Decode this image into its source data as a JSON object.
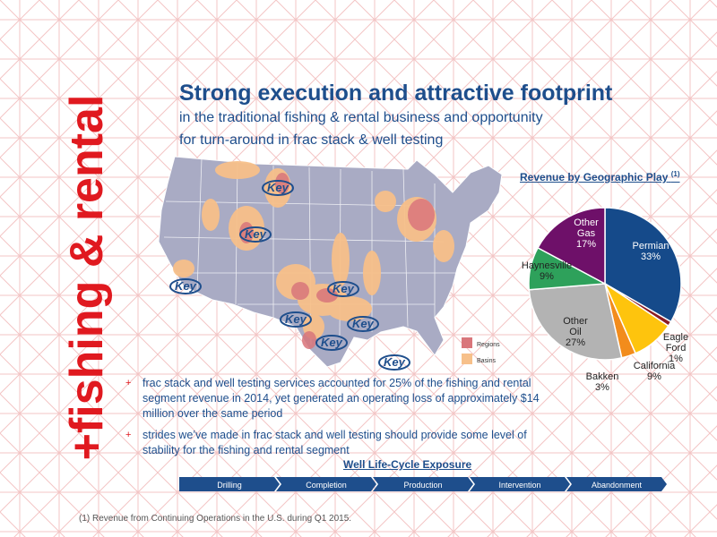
{
  "side_title": "+fishing & rental",
  "title": "Strong execution and attractive footprint",
  "subtitle_line1": "in the traditional fishing & rental business and opportunity",
  "subtitle_line2": "for turn-around in frac stack & well testing",
  "map": {
    "logo_text": "Key",
    "legend": [
      {
        "label": "Regions",
        "color": "#d9767b"
      },
      {
        "label": "Basins",
        "color": "#f7c08a"
      }
    ]
  },
  "chart_data": {
    "type": "pie",
    "title": "Revenue by Geographic Play",
    "title_sup": "(1)",
    "slices": [
      {
        "name": "Permian",
        "value": 33,
        "label": "33%",
        "color": "#154a8a"
      },
      {
        "name": "Eagle Ford",
        "value": 1,
        "label": "1%",
        "color": "#8b1c23"
      },
      {
        "name": "California",
        "value": 9,
        "label": "9%",
        "color": "#fec40d"
      },
      {
        "name": "Bakken",
        "value": 3,
        "label": "3%",
        "color": "#f28c1c"
      },
      {
        "name": "Other Oil",
        "value": 27,
        "label": "27%",
        "color": "#b3b3b3"
      },
      {
        "name": "Haynesville",
        "value": 9,
        "label": "9%",
        "color": "#2ea15b"
      },
      {
        "name": "Other Gas",
        "value": 17,
        "label": "17%",
        "color": "#6e1069"
      }
    ]
  },
  "bullets": [
    {
      "marker": "+",
      "text": "frac stack and well testing services accounted for 25% of the fishing and rental segment revenue in 2014, yet generated an operating loss of approximately $14 million over the same period"
    },
    {
      "marker": "+",
      "text": "strides we’ve made in frac stack and well testing should provide some level of stability for the fishing and rental segment"
    }
  ],
  "lifecycle": {
    "title": "Well Life-Cycle Exposure",
    "stages": [
      "Drilling",
      "Completion",
      "Production",
      "Intervention",
      "Abandonment"
    ],
    "color": "#1e4e8c"
  },
  "footnote": "(1) Revenue from Continuing Operations in the U.S. during Q1 2015."
}
